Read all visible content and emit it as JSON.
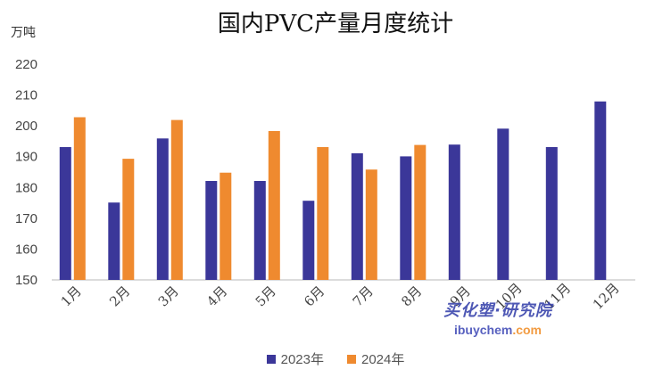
{
  "chart_data": {
    "type": "bar",
    "title": "国内PVC产量月度统计",
    "ylabel": "万吨",
    "xlabel": "",
    "categories": [
      "1月",
      "2月",
      "3月",
      "4月",
      "5月",
      "6月",
      "7月",
      "8月",
      "9月",
      "10月",
      "11月",
      "12月"
    ],
    "series": [
      {
        "name": "2023年",
        "color": "#3b3799",
        "values": [
          193.1,
          175.1,
          195.9,
          182.1,
          182.1,
          175.7,
          191.1,
          190.1,
          193.9,
          199.1,
          193.1,
          207.9
        ]
      },
      {
        "name": "2024年",
        "color": "#ef8a2f",
        "values": [
          202.8,
          189.3,
          201.9,
          184.8,
          198.3,
          193.1,
          185.8,
          193.8,
          null,
          null,
          null,
          null
        ]
      }
    ],
    "ylim": [
      150,
      220
    ],
    "yticks": [
      150,
      160,
      170,
      180,
      190,
      200,
      210,
      220
    ],
    "grid": false,
    "legend_position": "bottom"
  },
  "watermark": {
    "line1": "买化塑·研究院",
    "line2_main": "ibuychem",
    "line2_accent": ".com"
  }
}
